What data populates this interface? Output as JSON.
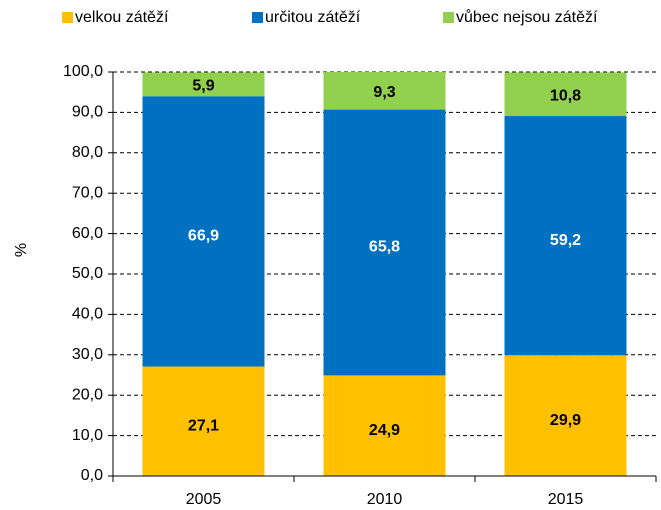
{
  "chart_data": {
    "type": "stacked_bar",
    "categories": [
      "2005",
      "2010",
      "2015"
    ],
    "series": [
      {
        "name": "velkou zátěží",
        "color": "#FFC000",
        "values": [
          27.1,
          24.9,
          29.9
        ],
        "value_labels": [
          "27,1",
          "24,9",
          "29,9"
        ]
      },
      {
        "name": "určitou zátěží",
        "color": "#0070C0",
        "values": [
          66.9,
          65.8,
          59.2
        ],
        "value_labels": [
          "66,9",
          "65,8",
          "59,2"
        ]
      },
      {
        "name": "vůbec nejsou zátěží",
        "color": "#92D050",
        "values": [
          5.9,
          9.3,
          10.8
        ],
        "value_labels": [
          "5,9",
          "9,3",
          "10,8"
        ]
      }
    ],
    "ylabel": "%",
    "ylim": [
      0,
      100
    ],
    "yticks": [
      {
        "value": 0,
        "label": "0,0"
      },
      {
        "value": 10,
        "label": "10,0"
      },
      {
        "value": 20,
        "label": "20,0"
      },
      {
        "value": 30,
        "label": "30,0"
      },
      {
        "value": 40,
        "label": "40,0"
      },
      {
        "value": 50,
        "label": "50,0"
      },
      {
        "value": 60,
        "label": "60,0"
      },
      {
        "value": 70,
        "label": "70,0"
      },
      {
        "value": 80,
        "label": "80,0"
      },
      {
        "value": 90,
        "label": "90,0"
      },
      {
        "value": 100,
        "label": "100,0"
      }
    ],
    "grid": true,
    "legend": "top"
  }
}
